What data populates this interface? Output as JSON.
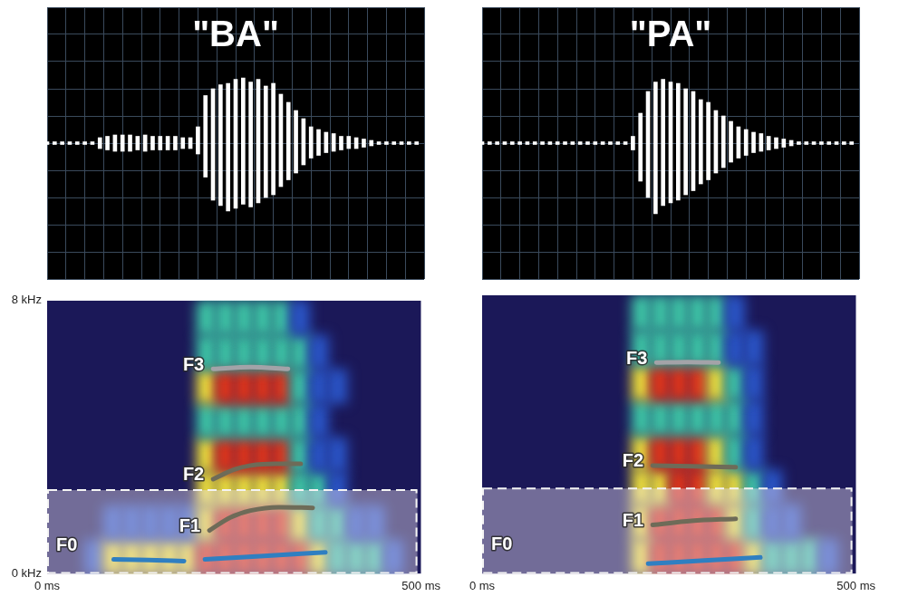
{
  "chart_data": [
    {
      "type": "waveform",
      "title": "\"BA\"",
      "xlim": [
        0,
        500
      ],
      "ylim": [
        -1,
        1
      ],
      "xticks": [
        0,
        25,
        50,
        75,
        100,
        125,
        150,
        175,
        200,
        225,
        250,
        275,
        300,
        325,
        350,
        375,
        400,
        425,
        450,
        475,
        500
      ],
      "yticks": [
        -1,
        -0.8,
        -0.6,
        -0.4,
        -0.2,
        0,
        0.2,
        0.4,
        0.6,
        0.8,
        1
      ],
      "tick_labels": false,
      "grid": true,
      "color": "#ffffff",
      "x": [
        0,
        10,
        20,
        30,
        40,
        50,
        60,
        70,
        80,
        90,
        100,
        110,
        120,
        130,
        140,
        150,
        160,
        170,
        180,
        190,
        200,
        210,
        220,
        230,
        240,
        250,
        260,
        270,
        280,
        290,
        300,
        310,
        320,
        330,
        340,
        350,
        360,
        370,
        380,
        390,
        400,
        410,
        420,
        430,
        440,
        450,
        460,
        470,
        480,
        490
      ],
      "upper": [
        0.01,
        0.01,
        0.01,
        0.01,
        0.01,
        0.01,
        0.01,
        0.04,
        0.05,
        0.06,
        0.06,
        0.06,
        0.05,
        0.06,
        0.05,
        0.05,
        0.05,
        0.05,
        0.04,
        0.04,
        0.12,
        0.35,
        0.4,
        0.43,
        0.44,
        0.47,
        0.48,
        0.45,
        0.47,
        0.42,
        0.44,
        0.36,
        0.3,
        0.24,
        0.18,
        0.12,
        0.1,
        0.08,
        0.07,
        0.05,
        0.05,
        0.04,
        0.03,
        0.02,
        0.01,
        0.01,
        0.01,
        0.01,
        0.01,
        0.01
      ],
      "lower": [
        -0.01,
        -0.01,
        -0.01,
        -0.01,
        -0.01,
        -0.01,
        -0.01,
        -0.04,
        -0.05,
        -0.06,
        -0.06,
        -0.06,
        -0.05,
        -0.06,
        -0.05,
        -0.05,
        -0.05,
        -0.05,
        -0.04,
        -0.04,
        -0.08,
        -0.25,
        -0.42,
        -0.46,
        -0.5,
        -0.48,
        -0.45,
        -0.47,
        -0.44,
        -0.4,
        -0.38,
        -0.32,
        -0.27,
        -0.22,
        -0.16,
        -0.11,
        -0.09,
        -0.07,
        -0.06,
        -0.05,
        -0.04,
        -0.04,
        -0.03,
        -0.02,
        -0.01,
        -0.01,
        -0.01,
        -0.01,
        -0.01,
        -0.01
      ]
    },
    {
      "type": "waveform",
      "title": "\"PA\"",
      "xlim": [
        0,
        500
      ],
      "ylim": [
        -1,
        1
      ],
      "xticks": [
        0,
        25,
        50,
        75,
        100,
        125,
        150,
        175,
        200,
        225,
        250,
        275,
        300,
        325,
        350,
        375,
        400,
        425,
        450,
        475,
        500
      ],
      "yticks": [
        -1,
        -0.8,
        -0.6,
        -0.4,
        -0.2,
        0,
        0.2,
        0.4,
        0.6,
        0.8,
        1
      ],
      "tick_labels": false,
      "grid": true,
      "color": "#ffffff",
      "x": [
        0,
        10,
        20,
        30,
        40,
        50,
        60,
        70,
        80,
        90,
        100,
        110,
        120,
        130,
        140,
        150,
        160,
        170,
        180,
        190,
        200,
        210,
        220,
        230,
        240,
        250,
        260,
        270,
        280,
        290,
        300,
        310,
        320,
        330,
        340,
        350,
        360,
        370,
        380,
        390,
        400,
        410,
        420,
        430,
        440,
        450,
        460,
        470,
        480,
        490
      ],
      "upper": [
        0.01,
        0.01,
        0.01,
        0.01,
        0.01,
        0.01,
        0.01,
        0.01,
        0.01,
        0.01,
        0.01,
        0.01,
        0.01,
        0.01,
        0.01,
        0.01,
        0.01,
        0.01,
        0.01,
        0.01,
        0.05,
        0.22,
        0.38,
        0.45,
        0.47,
        0.45,
        0.44,
        0.4,
        0.38,
        0.32,
        0.3,
        0.24,
        0.2,
        0.16,
        0.12,
        0.1,
        0.08,
        0.07,
        0.05,
        0.04,
        0.03,
        0.02,
        0.01,
        0.01,
        0.01,
        0.01,
        0.01,
        0.01,
        0.01,
        0.01
      ],
      "lower": [
        -0.01,
        -0.01,
        -0.01,
        -0.01,
        -0.01,
        -0.01,
        -0.01,
        -0.01,
        -0.01,
        -0.01,
        -0.01,
        -0.01,
        -0.01,
        -0.01,
        -0.01,
        -0.01,
        -0.01,
        -0.01,
        -0.01,
        -0.01,
        -0.05,
        -0.28,
        -0.4,
        -0.52,
        -0.46,
        -0.44,
        -0.42,
        -0.38,
        -0.35,
        -0.3,
        -0.27,
        -0.22,
        -0.18,
        -0.14,
        -0.11,
        -0.09,
        -0.07,
        -0.06,
        -0.05,
        -0.04,
        -0.03,
        -0.02,
        -0.01,
        -0.01,
        -0.01,
        -0.01,
        -0.01,
        -0.01,
        -0.01,
        -0.01
      ]
    },
    {
      "type": "spectrogram",
      "xlim": [
        0,
        500
      ],
      "ylim": [
        0,
        8
      ],
      "xticks": [
        {
          "value": 0,
          "label": "0 ms"
        },
        {
          "value": 500,
          "label": "500 ms"
        }
      ],
      "yticks": [
        {
          "value": 0,
          "label": "0 kHz"
        },
        {
          "value": 8,
          "label": "8 kHz"
        }
      ],
      "grid": false,
      "spectrogram": {
        "t_bins": [
          0,
          25,
          50,
          75,
          100,
          125,
          150,
          175,
          200,
          225,
          250,
          275,
          300,
          325,
          350,
          375,
          400,
          425,
          450,
          475,
          500
        ],
        "f_bins": [
          0,
          1,
          2,
          3,
          4,
          5,
          6,
          7,
          8
        ],
        "cells": [
          [
            0,
            0,
            1,
            3,
            3,
            3,
            3,
            3,
            4,
            4,
            4,
            4,
            4,
            4,
            3,
            2,
            2,
            2,
            1,
            0
          ],
          [
            0,
            0,
            0,
            1,
            1,
            1,
            1,
            1,
            3,
            4,
            4,
            4,
            4,
            3,
            2,
            2,
            1,
            1,
            0,
            0
          ],
          [
            0,
            0,
            0,
            0,
            0,
            0,
            0,
            0,
            3,
            3,
            3,
            3,
            3,
            2,
            2,
            1,
            0,
            0,
            0,
            0
          ],
          [
            0,
            0,
            0,
            0,
            0,
            0,
            0,
            0,
            3,
            4,
            4,
            4,
            4,
            2,
            1,
            1,
            0,
            0,
            0,
            0
          ],
          [
            0,
            0,
            0,
            0,
            0,
            0,
            0,
            0,
            2,
            2,
            2,
            2,
            2,
            2,
            1,
            0,
            0,
            0,
            0,
            0
          ],
          [
            0,
            0,
            0,
            0,
            0,
            0,
            0,
            0,
            3,
            4,
            4,
            4,
            4,
            2,
            1,
            1,
            0,
            0,
            0,
            0
          ],
          [
            0,
            0,
            0,
            0,
            0,
            0,
            0,
            0,
            2,
            2,
            2,
            2,
            2,
            2,
            1,
            0,
            0,
            0,
            0,
            0
          ],
          [
            0,
            0,
            0,
            0,
            0,
            0,
            0,
            0,
            2,
            2,
            2,
            2,
            2,
            1,
            0,
            0,
            0,
            0,
            0,
            0
          ]
        ]
      },
      "highlight": {
        "xlim": [
          0,
          495
        ],
        "ylim": [
          0,
          2.45
        ],
        "label": "F0"
      },
      "series": [
        {
          "color": "#2f7fc1",
          "x": [
            89,
            136,
            183
          ],
          "values": [
            0.42,
            0.4,
            0.37
          ]
        },
        {
          "color": "#2f7fc1",
          "x": [
            211,
            290,
            372
          ],
          "values": [
            0.42,
            0.52,
            0.63
          ]
        },
        {
          "name": "F1",
          "color": "#6e6b58",
          "x": [
            217,
            245,
            272,
            310,
            355
          ],
          "values": [
            1.27,
            1.65,
            1.85,
            1.95,
            1.93
          ]
        },
        {
          "name": "F2",
          "color": "#6e6b58",
          "x": [
            222,
            250,
            272,
            305,
            339
          ],
          "values": [
            2.77,
            3.05,
            3.17,
            3.22,
            3.22
          ]
        },
        {
          "name": "F3",
          "color": "#a3a3a8",
          "x": [
            222,
            272,
            322
          ],
          "values": [
            6.0,
            6.05,
            6.0
          ]
        }
      ]
    },
    {
      "type": "spectrogram",
      "xlim": [
        0,
        500
      ],
      "ylim": [
        0,
        8
      ],
      "xticks": [
        {
          "value": 0,
          "label": "0 ms"
        },
        {
          "value": 500,
          "label": "500 ms"
        }
      ],
      "tick_labels": "x",
      "grid": false,
      "spectrogram": {
        "t_bins": [
          0,
          25,
          50,
          75,
          100,
          125,
          150,
          175,
          200,
          225,
          250,
          275,
          300,
          325,
          350,
          375,
          400,
          425,
          450,
          475,
          500
        ],
        "f_bins": [
          0,
          1,
          2,
          3,
          4,
          5,
          6,
          7,
          8
        ],
        "cells": [
          [
            0,
            0,
            0,
            0,
            0,
            0,
            0,
            0,
            3,
            4,
            4,
            4,
            4,
            4,
            3,
            2,
            2,
            2,
            1,
            0
          ],
          [
            0,
            0,
            0,
            0,
            0,
            0,
            0,
            0,
            3,
            4,
            4,
            4,
            4,
            3,
            2,
            1,
            1,
            0,
            0,
            0
          ],
          [
            0,
            0,
            0,
            0,
            0,
            0,
            0,
            0,
            3,
            3,
            4,
            4,
            3,
            3,
            2,
            1,
            0,
            0,
            0,
            0
          ],
          [
            0,
            0,
            0,
            0,
            0,
            0,
            0,
            0,
            3,
            4,
            4,
            4,
            3,
            2,
            1,
            0,
            0,
            0,
            0,
            0
          ],
          [
            0,
            0,
            0,
            0,
            0,
            0,
            0,
            0,
            2,
            2,
            2,
            2,
            2,
            2,
            1,
            0,
            0,
            0,
            0,
            0
          ],
          [
            0,
            0,
            0,
            0,
            0,
            0,
            0,
            0,
            3,
            4,
            4,
            4,
            3,
            2,
            1,
            0,
            0,
            0,
            0,
            0
          ],
          [
            0,
            0,
            0,
            0,
            0,
            0,
            0,
            0,
            2,
            2,
            2,
            2,
            2,
            1,
            1,
            0,
            0,
            0,
            0,
            0
          ],
          [
            0,
            0,
            0,
            0,
            0,
            0,
            0,
            0,
            2,
            2,
            2,
            2,
            2,
            1,
            0,
            0,
            0,
            0,
            0,
            0
          ]
        ]
      },
      "highlight": {
        "xlim": [
          0,
          495
        ],
        "ylim": [
          0,
          2.45
        ],
        "label": "F0"
      },
      "series": [
        {
          "color": "#2f7fc1",
          "x": [
            222,
            297,
            372
          ],
          "values": [
            0.29,
            0.38,
            0.47
          ]
        },
        {
          "name": "F1",
          "color": "#6e6b58",
          "x": [
            228,
            280,
            339
          ],
          "values": [
            1.4,
            1.52,
            1.58
          ]
        },
        {
          "name": "F2",
          "color": "#6e6b58",
          "x": [
            228,
            280,
            339
          ],
          "values": [
            3.11,
            3.09,
            3.06
          ]
        },
        {
          "name": "F3",
          "color": "#a3a3a8",
          "x": [
            233,
            275,
            316
          ],
          "values": [
            6.07,
            6.08,
            6.07
          ]
        }
      ]
    }
  ]
}
